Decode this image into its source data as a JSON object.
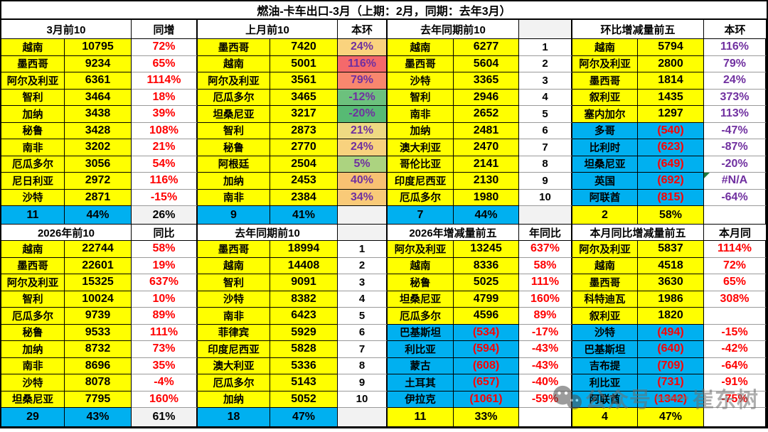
{
  "title": "燃油-卡车出口-3月（上期：2月，同期：去年3月）",
  "headers_row1": [
    "3月前10",
    "同增",
    "上月前10",
    "本环",
    "去年同期前10",
    "",
    "环比增减量前五",
    "本环"
  ],
  "headers_row2": [
    "2026年前10",
    "同比",
    "去年同期前10",
    "",
    "2026年增减量前五",
    "年同比",
    "本月同比增减量前五",
    "本月同"
  ],
  "colors": {
    "highlight_yellow": "#FFFF00",
    "negative_blue": "#00B0F0",
    "growth_red_text": "#FF0000",
    "ratio_purple_text": "#7030A0",
    "footer_gray": "#F2F2F2",
    "na_marker_green": "#1F7A3C"
  },
  "blocks": [
    {
      "rows": [
        {
          "name": "越南",
          "value": "10795",
          "stat": "72%"
        },
        {
          "name": "墨西哥",
          "value": "9234",
          "stat": "65%"
        },
        {
          "name": "阿尔及利亚",
          "value": "6361",
          "stat": "1114%"
        },
        {
          "name": "智利",
          "value": "3464",
          "stat": "18%"
        },
        {
          "name": "加纳",
          "value": "3438",
          "stat": "39%"
        },
        {
          "name": "秘鲁",
          "value": "3428",
          "stat": "108%"
        },
        {
          "name": "南非",
          "value": "3202",
          "stat": "21%"
        },
        {
          "name": "厄瓜多尔",
          "value": "3056",
          "stat": "54%"
        },
        {
          "name": "尼日利亚",
          "value": "2972",
          "stat": "116%"
        },
        {
          "name": "沙特",
          "value": "2871",
          "stat": "-15%"
        }
      ],
      "footer": [
        "11",
        "44%",
        "26%"
      ]
    },
    {
      "rows": [
        {
          "name": "墨西哥",
          "value": "7420",
          "stat": "24%",
          "stat_bg": "#FAD37E"
        },
        {
          "name": "越南",
          "value": "5001",
          "stat": "116%",
          "stat_bg": "#F4696B"
        },
        {
          "name": "阿尔及利亚",
          "value": "3561",
          "stat": "79%",
          "stat_bg": "#F9876E"
        },
        {
          "name": "厄瓜多尔",
          "value": "3465",
          "stat": "-12%",
          "stat_bg": "#6CC17D"
        },
        {
          "name": "坦桑尼亚",
          "value": "3217",
          "stat": "-20%",
          "stat_bg": "#57BA74"
        },
        {
          "name": "智利",
          "value": "2873",
          "stat": "21%",
          "stat_bg": "#EEDA82"
        },
        {
          "name": "秘鲁",
          "value": "2770",
          "stat": "24%",
          "stat_bg": "#F8D27E"
        },
        {
          "name": "阿根廷",
          "value": "2504",
          "stat": "5%",
          "stat_bg": "#ACD380"
        },
        {
          "name": "加纳",
          "value": "2453",
          "stat": "40%",
          "stat_bg": "#F8C172"
        },
        {
          "name": "南非",
          "value": "2384",
          "stat": "34%",
          "stat_bg": "#F9CA78"
        }
      ],
      "footer": [
        "9",
        "41%",
        ""
      ]
    },
    {
      "rows": [
        {
          "name": "越南",
          "value": "6277",
          "stat": "1"
        },
        {
          "name": "墨西哥",
          "value": "5604",
          "stat": "2"
        },
        {
          "name": "沙特",
          "value": "3365",
          "stat": "3"
        },
        {
          "name": "智利",
          "value": "2946",
          "stat": "4"
        },
        {
          "name": "南非",
          "value": "2652",
          "stat": "5"
        },
        {
          "name": "加纳",
          "value": "2481",
          "stat": "6"
        },
        {
          "name": "澳大利亚",
          "value": "2470",
          "stat": "7"
        },
        {
          "name": "哥伦比亚",
          "value": "2141",
          "stat": "8"
        },
        {
          "name": "印度尼西亚",
          "value": "2130",
          "stat": "9"
        },
        {
          "name": "厄瓜多尔",
          "value": "1980",
          "stat": "10"
        }
      ],
      "footer": [
        "7",
        "44%",
        ""
      ]
    },
    {
      "rows": [
        {
          "name": "越南",
          "value": "5794",
          "stat": "116%"
        },
        {
          "name": "阿尔及利亚",
          "value": "2800",
          "stat": "79%"
        },
        {
          "name": "墨西哥",
          "value": "1814",
          "stat": "24%"
        },
        {
          "name": "叙利亚",
          "value": "1435",
          "stat": "373%"
        },
        {
          "name": "塞内加尔",
          "value": "1297",
          "stat": "113%"
        },
        {
          "name": "多哥",
          "value": "(540)",
          "stat": "-47%"
        },
        {
          "name": "比利时",
          "value": "(623)",
          "stat": "-87%"
        },
        {
          "name": "坦桑尼亚",
          "value": "(649)",
          "stat": "-20%"
        },
        {
          "name": "英国",
          "value": "(692)",
          "stat": "#N/A",
          "marker": "green-triangle"
        },
        {
          "name": "阿联酋",
          "value": "(815)",
          "stat": "-64%"
        }
      ],
      "footer": [
        "2",
        "58%",
        ""
      ]
    },
    {
      "rows": [
        {
          "name": "越南",
          "value": "22744",
          "stat": "58%"
        },
        {
          "name": "墨西哥",
          "value": "22601",
          "stat": "19%"
        },
        {
          "name": "阿尔及利亚",
          "value": "15325",
          "stat": "637%"
        },
        {
          "name": "智利",
          "value": "10024",
          "stat": "10%"
        },
        {
          "name": "厄瓜多尔",
          "value": "9739",
          "stat": "89%"
        },
        {
          "name": "秘鲁",
          "value": "9533",
          "stat": "111%"
        },
        {
          "name": "加纳",
          "value": "8732",
          "stat": "73%"
        },
        {
          "name": "南非",
          "value": "8696",
          "stat": "35%"
        },
        {
          "name": "沙特",
          "value": "8078",
          "stat": "-4%"
        },
        {
          "name": "坦桑尼亚",
          "value": "7795",
          "stat": "160%"
        }
      ],
      "footer": [
        "29",
        "43%",
        "61%"
      ]
    },
    {
      "rows": [
        {
          "name": "墨西哥",
          "value": "18994",
          "stat": "1"
        },
        {
          "name": "越南",
          "value": "14408",
          "stat": "2"
        },
        {
          "name": "智利",
          "value": "9091",
          "stat": "3"
        },
        {
          "name": "沙特",
          "value": "8382",
          "stat": "4"
        },
        {
          "name": "南非",
          "value": "6423",
          "stat": "5"
        },
        {
          "name": "菲律宾",
          "value": "5929",
          "stat": "6"
        },
        {
          "name": "印度尼西亚",
          "value": "5828",
          "stat": "7"
        },
        {
          "name": "澳大利亚",
          "value": "5336",
          "stat": "8"
        },
        {
          "name": "厄瓜多尔",
          "value": "5143",
          "stat": "9"
        },
        {
          "name": "加纳",
          "value": "5052",
          "stat": "10"
        }
      ],
      "footer": [
        "18",
        "47%",
        ""
      ]
    },
    {
      "rows": [
        {
          "name": "阿尔及利亚",
          "value": "13245",
          "stat": "637%"
        },
        {
          "name": "越南",
          "value": "8336",
          "stat": "58%"
        },
        {
          "name": "秘鲁",
          "value": "5025",
          "stat": "111%"
        },
        {
          "name": "坦桑尼亚",
          "value": "4799",
          "stat": "160%"
        },
        {
          "name": "厄瓜多尔",
          "value": "4596",
          "stat": "89%"
        },
        {
          "name": "巴基斯坦",
          "value": "(534)",
          "stat": "-17%"
        },
        {
          "name": "利比亚",
          "value": "(594)",
          "stat": "-43%"
        },
        {
          "name": "蒙古",
          "value": "(608)",
          "stat": "-43%"
        },
        {
          "name": "土耳其",
          "value": "(657)",
          "stat": "-40%"
        },
        {
          "name": "伊拉克",
          "value": "(1061)",
          "stat": "-59%"
        }
      ],
      "footer": [
        "11",
        "33%",
        ""
      ]
    },
    {
      "rows": [
        {
          "name": "阿尔及利亚",
          "value": "5837",
          "stat": "1114%"
        },
        {
          "name": "越南",
          "value": "4518",
          "stat": "72%"
        },
        {
          "name": "墨西哥",
          "value": "3630",
          "stat": "65%"
        },
        {
          "name": "科特迪瓦",
          "value": "1986",
          "stat": "308%"
        },
        {
          "name": "叙利亚",
          "value": "1820",
          "stat": ""
        },
        {
          "name": "沙特",
          "value": "(494)",
          "stat": "-15%"
        },
        {
          "name": "巴基斯坦",
          "value": "(640)",
          "stat": "-42%"
        },
        {
          "name": "吉布提",
          "value": "(709)",
          "stat": "-64%"
        },
        {
          "name": "利比亚",
          "value": "(731)",
          "stat": "-91%"
        },
        {
          "name": "阿联酋",
          "value": "(1342)",
          "stat": "-75%"
        }
      ],
      "footer": [
        "4",
        "47%",
        ""
      ]
    }
  ],
  "watermark": {
    "icon": "wechat-icon",
    "text_left": "公众号",
    "text_right": "崔东树"
  }
}
